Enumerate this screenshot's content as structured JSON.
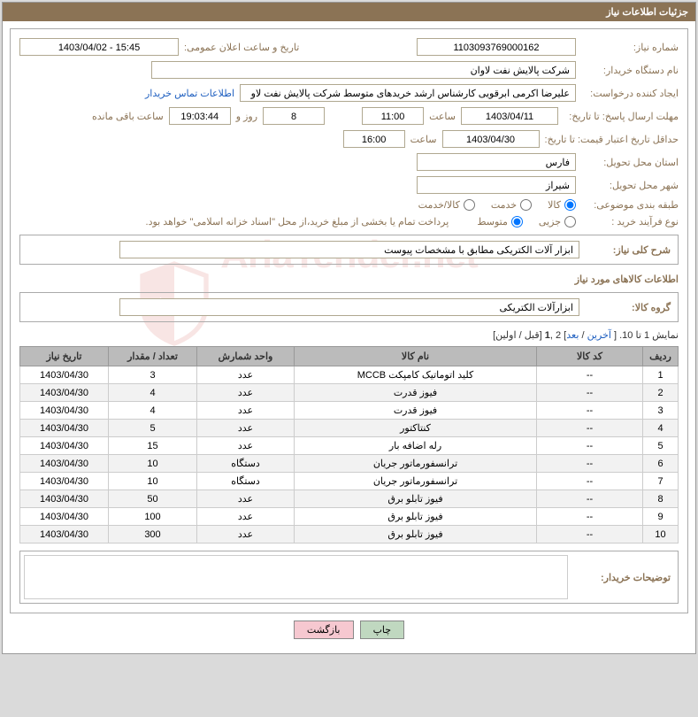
{
  "header": {
    "title": "جزئیات اطلاعات نیاز"
  },
  "fields": {
    "need_no_label": "شماره نیاز:",
    "need_no": "1103093769000162",
    "announce_label": "تاریخ و ساعت اعلان عمومی:",
    "announce": "15:45 - 1403/04/02",
    "buyer_org_label": "نام دستگاه خریدار:",
    "buyer_org": "شرکت پالایش نفت لاوان",
    "requester_label": "ایجاد کننده درخواست:",
    "requester": "علیرضا اکرمی ابرقویی کارشناس ارشد خریدهای متوسط شرکت پالایش نفت لاو",
    "contact_link": "اطلاعات تماس خریدار",
    "reply_deadline_label": "مهلت ارسال پاسخ: تا تاریخ:",
    "reply_date": "1403/04/11",
    "time_label": "ساعت",
    "reply_time": "11:00",
    "days_count": "8",
    "days_and": "روز و",
    "remaining_time": "19:03:44",
    "remaining_label": "ساعت باقی مانده",
    "price_valid_label": "حداقل تاریخ اعتبار قیمت: تا تاریخ:",
    "price_date": "1403/04/30",
    "price_time": "16:00",
    "province_label": "استان محل تحویل:",
    "province": "فارس",
    "city_label": "شهر محل تحویل:",
    "city": "شیراز",
    "category_label": "طبقه بندی موضوعی:",
    "cat_goods": "کالا",
    "cat_service": "خدمت",
    "cat_both": "کالا/خدمت",
    "process_label": "نوع فرآیند خرید :",
    "proc_small": "جزیی",
    "proc_medium": "متوسط",
    "payment_note": "پرداخت تمام یا بخشی از مبلغ خرید،از محل \"اسناد خزانه اسلامی\" خواهد بود.",
    "desc_label": "شرح کلی نیاز:",
    "desc": "ابزار آلات الکتریکی مطابق با مشخصات پیوست",
    "items_title": "اطلاعات کالاهای مورد نیاز",
    "group_label": "گروه کالا:",
    "group": "ابزارآلات الکتریکی"
  },
  "pagination": {
    "text1": "نمایش 1 تا 10. [ ",
    "last": "آخرین",
    "sep1": " / ",
    "next": "بعد",
    "text2": "] 2 ,",
    "one": "1",
    "text3": " [قبل / اولین]"
  },
  "table": {
    "headers": {
      "row": "ردیف",
      "code": "کد کالا",
      "name": "نام کالا",
      "unit": "واحد شمارش",
      "qty": "تعداد / مقدار",
      "date": "تاریخ نیاز"
    },
    "rows": [
      {
        "n": "1",
        "code": "--",
        "name": "کلید اتوماتیک کامپکت MCCB",
        "unit": "عدد",
        "qty": "3",
        "date": "1403/04/30"
      },
      {
        "n": "2",
        "code": "--",
        "name": "فیوز قدرت",
        "unit": "عدد",
        "qty": "4",
        "date": "1403/04/30"
      },
      {
        "n": "3",
        "code": "--",
        "name": "فیوز قدرت",
        "unit": "عدد",
        "qty": "4",
        "date": "1403/04/30"
      },
      {
        "n": "4",
        "code": "--",
        "name": "کنتاکتور",
        "unit": "عدد",
        "qty": "5",
        "date": "1403/04/30"
      },
      {
        "n": "5",
        "code": "--",
        "name": "رله اضافه بار",
        "unit": "عدد",
        "qty": "15",
        "date": "1403/04/30"
      },
      {
        "n": "6",
        "code": "--",
        "name": "ترانسفورماتور جریان",
        "unit": "دستگاه",
        "qty": "10",
        "date": "1403/04/30"
      },
      {
        "n": "7",
        "code": "--",
        "name": "ترانسفورماتور جریان",
        "unit": "دستگاه",
        "qty": "10",
        "date": "1403/04/30"
      },
      {
        "n": "8",
        "code": "--",
        "name": "فیوز تابلو برق",
        "unit": "عدد",
        "qty": "50",
        "date": "1403/04/30"
      },
      {
        "n": "9",
        "code": "--",
        "name": "فیوز تابلو برق",
        "unit": "عدد",
        "qty": "100",
        "date": "1403/04/30"
      },
      {
        "n": "10",
        "code": "--",
        "name": "فیوز تابلو برق",
        "unit": "عدد",
        "qty": "300",
        "date": "1403/04/30"
      }
    ]
  },
  "comment_label": "توضیحات خریدار:",
  "buttons": {
    "print": "چاپ",
    "back": "بازگشت"
  },
  "colors": {
    "header_bg": "#8b7355",
    "label": "#8b7355",
    "link": "#2060c0",
    "th_bg": "#bbbbbb"
  }
}
